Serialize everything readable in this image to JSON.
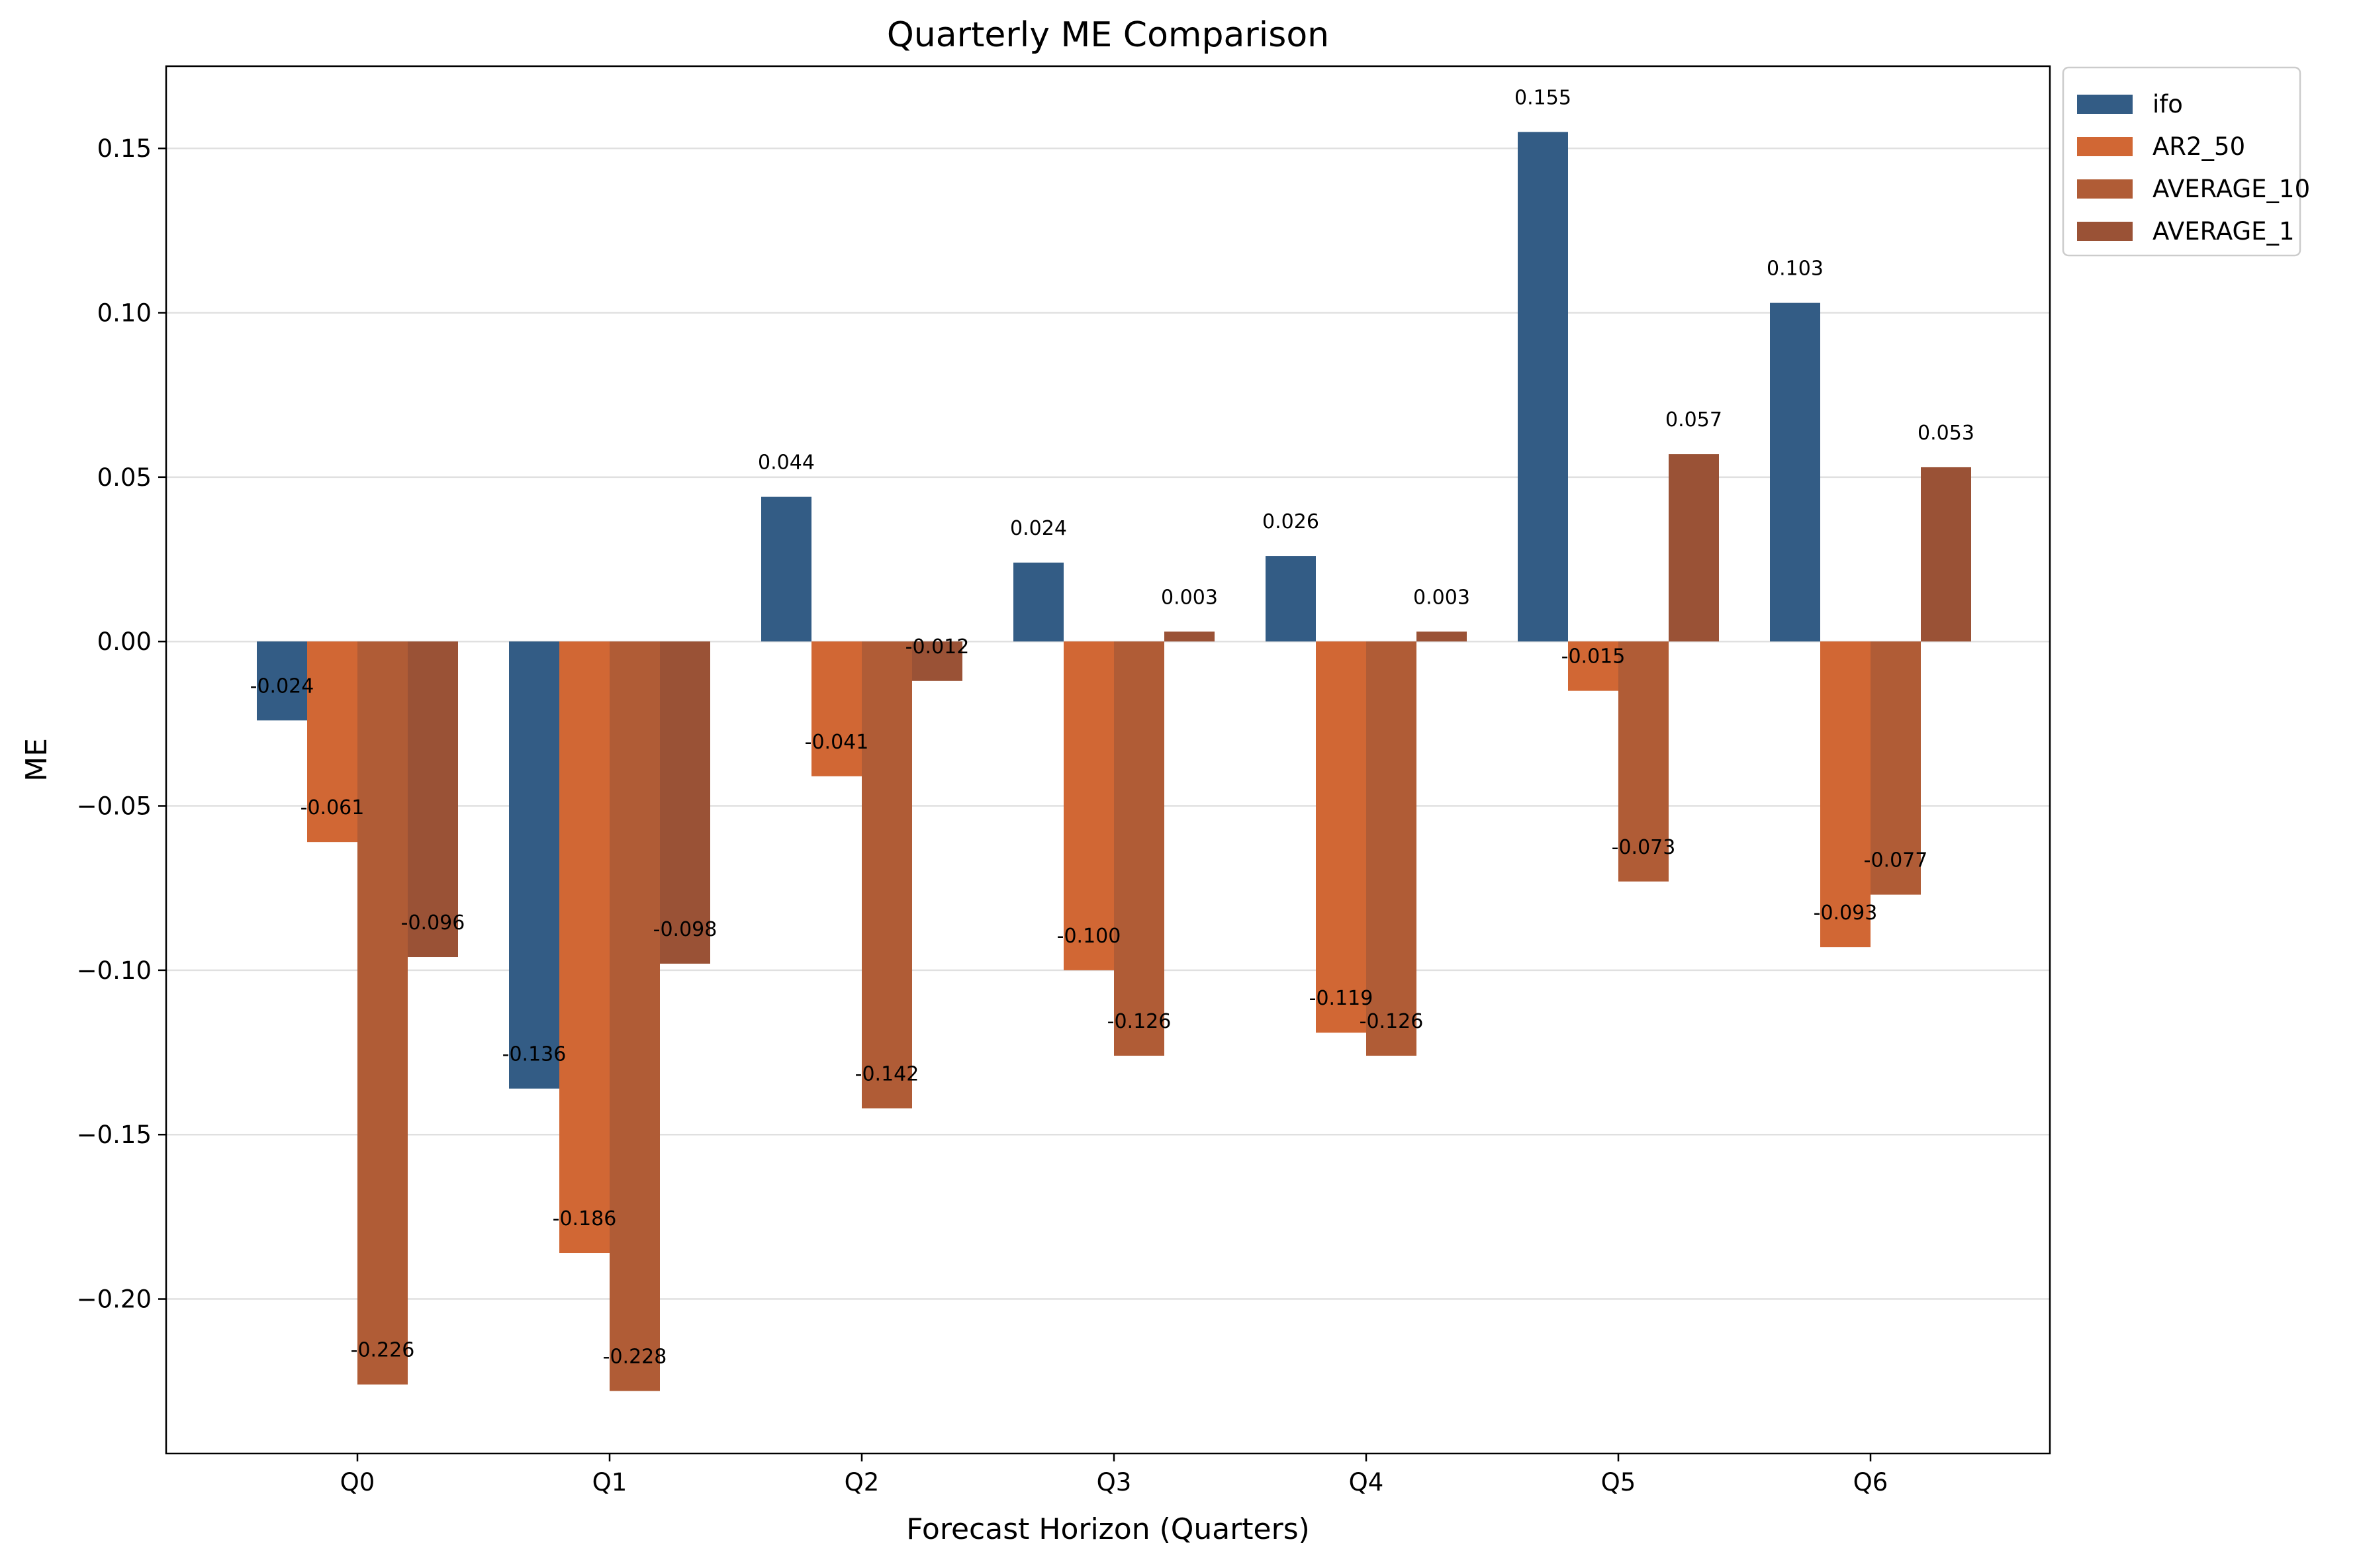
{
  "chart_data": {
    "type": "bar",
    "title": "Quarterly ME Comparison",
    "xlabel": "Forecast Horizon (Quarters)",
    "ylabel": "ME",
    "categories": [
      "Q0",
      "Q1",
      "Q2",
      "Q3",
      "Q4",
      "Q5",
      "Q6"
    ],
    "ylim": [
      -0.247,
      0.175
    ],
    "yticks": [
      0.15,
      0.1,
      0.05,
      0.0,
      -0.05,
      -0.1,
      -0.15,
      -0.2
    ],
    "ytick_labels": [
      "0.15",
      "0.10",
      "0.05",
      "0.00",
      "−0.05",
      "−0.10",
      "−0.15",
      "−0.20"
    ],
    "grid": "horizontal",
    "legend_position": "upper right, outside plot",
    "series": [
      {
        "name": "ifo",
        "color": "#335c85",
        "values": [
          -0.024,
          -0.136,
          0.044,
          0.024,
          0.026,
          0.155,
          0.103
        ],
        "labels": [
          "-0.024",
          "-0.136",
          "0.044",
          "0.024",
          "0.026",
          "0.155",
          "0.103"
        ]
      },
      {
        "name": "AR2_50",
        "color": "#d16734",
        "values": [
          -0.061,
          -0.186,
          -0.041,
          -0.1,
          -0.119,
          -0.015,
          -0.093
        ],
        "labels": [
          "-0.061",
          "-0.186",
          "-0.041",
          "-0.100",
          "-0.119",
          "-0.015",
          "-0.093"
        ]
      },
      {
        "name": "AVERAGE_10",
        "color": "#b05c36",
        "values": [
          -0.226,
          -0.228,
          -0.142,
          -0.126,
          -0.126,
          -0.073,
          -0.077
        ],
        "labels": [
          "-0.226",
          "-0.228",
          "-0.142",
          "-0.126",
          "-0.126",
          "-0.073",
          "-0.077"
        ]
      },
      {
        "name": "AVERAGE_1",
        "color": "#9a5236",
        "values": [
          -0.096,
          -0.098,
          -0.012,
          0.003,
          0.003,
          0.057,
          0.053
        ],
        "labels": [
          "-0.096",
          "-0.098",
          "-0.012",
          "0.003",
          "0.003",
          "0.057",
          "0.053"
        ]
      }
    ]
  }
}
